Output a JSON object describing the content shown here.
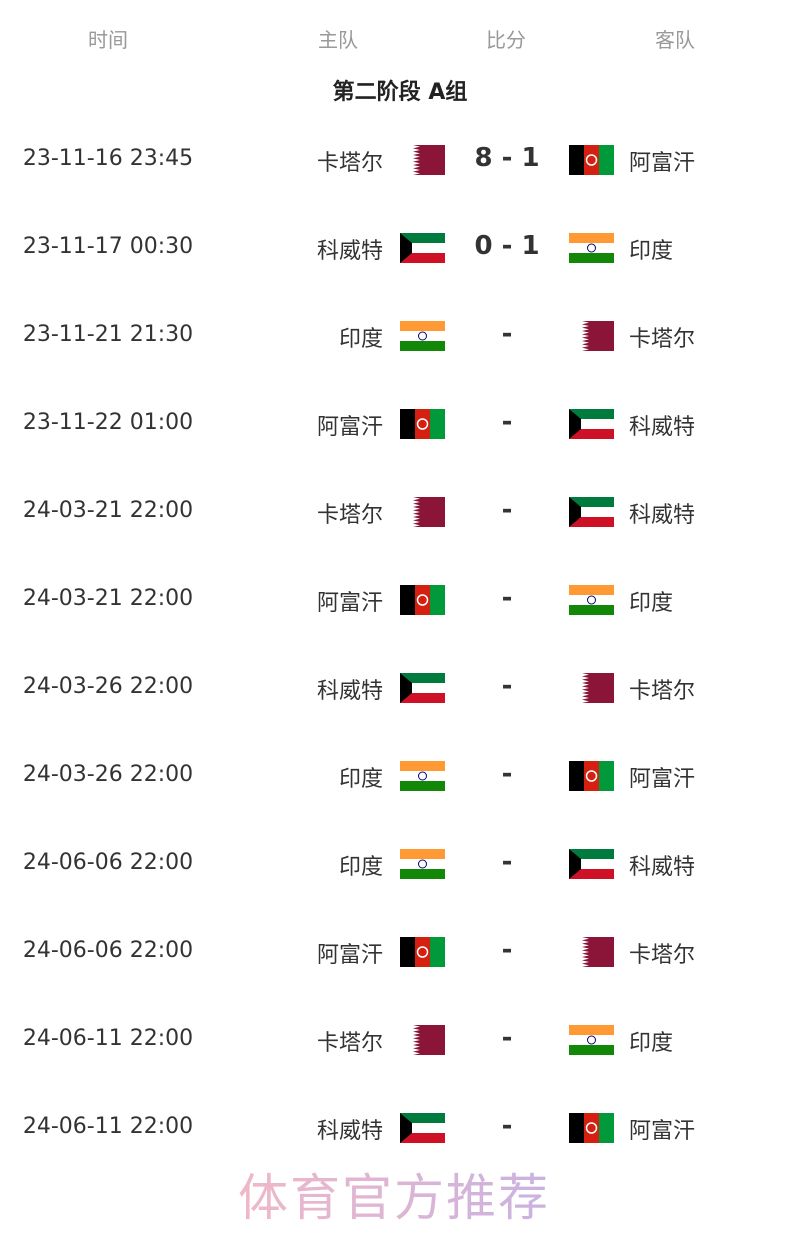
{
  "header": {
    "time": "时间",
    "home": "主队",
    "score": "比分",
    "away": "客队"
  },
  "group_title": "第二阶段 A组",
  "colors": {
    "qatar": "#8a1538",
    "afg_red": "#d32011",
    "afg_green": "#009a3b",
    "kuwait_green": "#007a3d",
    "kuwait_red": "#ce1126",
    "india_saffron": "#ff9933",
    "india_green": "#138808"
  },
  "matches": [
    {
      "time": "23-11-16 23:45",
      "home": "卡塔尔",
      "home_flag": "qatar",
      "score": "8 - 1",
      "away": "阿富汗",
      "away_flag": "afghanistan"
    },
    {
      "time": "23-11-17 00:30",
      "home": "科威特",
      "home_flag": "kuwait",
      "score": "0 - 1",
      "away": "印度",
      "away_flag": "india"
    },
    {
      "time": "23-11-21 21:30",
      "home": "印度",
      "home_flag": "india",
      "score": "-",
      "away": "卡塔尔",
      "away_flag": "qatar"
    },
    {
      "time": "23-11-22 01:00",
      "home": "阿富汗",
      "home_flag": "afghanistan",
      "score": "-",
      "away": "科威特",
      "away_flag": "kuwait"
    },
    {
      "time": "24-03-21 22:00",
      "home": "卡塔尔",
      "home_flag": "qatar",
      "score": "-",
      "away": "科威特",
      "away_flag": "kuwait"
    },
    {
      "time": "24-03-21 22:00",
      "home": "阿富汗",
      "home_flag": "afghanistan",
      "score": "-",
      "away": "印度",
      "away_flag": "india"
    },
    {
      "time": "24-03-26 22:00",
      "home": "科威特",
      "home_flag": "kuwait",
      "score": "-",
      "away": "卡塔尔",
      "away_flag": "qatar"
    },
    {
      "time": "24-03-26 22:00",
      "home": "印度",
      "home_flag": "india",
      "score": "-",
      "away": "阿富汗",
      "away_flag": "afghanistan"
    },
    {
      "time": "24-06-06 22:00",
      "home": "印度",
      "home_flag": "india",
      "score": "-",
      "away": "科威特",
      "away_flag": "kuwait"
    },
    {
      "time": "24-06-06 22:00",
      "home": "阿富汗",
      "home_flag": "afghanistan",
      "score": "-",
      "away": "卡塔尔",
      "away_flag": "qatar"
    },
    {
      "time": "24-06-11 22:00",
      "home": "卡塔尔",
      "home_flag": "qatar",
      "score": "-",
      "away": "印度",
      "away_flag": "india"
    },
    {
      "time": "24-06-11 22:00",
      "home": "科威特",
      "home_flag": "kuwait",
      "score": "-",
      "away": "阿富汗",
      "away_flag": "afghanistan"
    }
  ],
  "watermark": "体育官方推荐"
}
